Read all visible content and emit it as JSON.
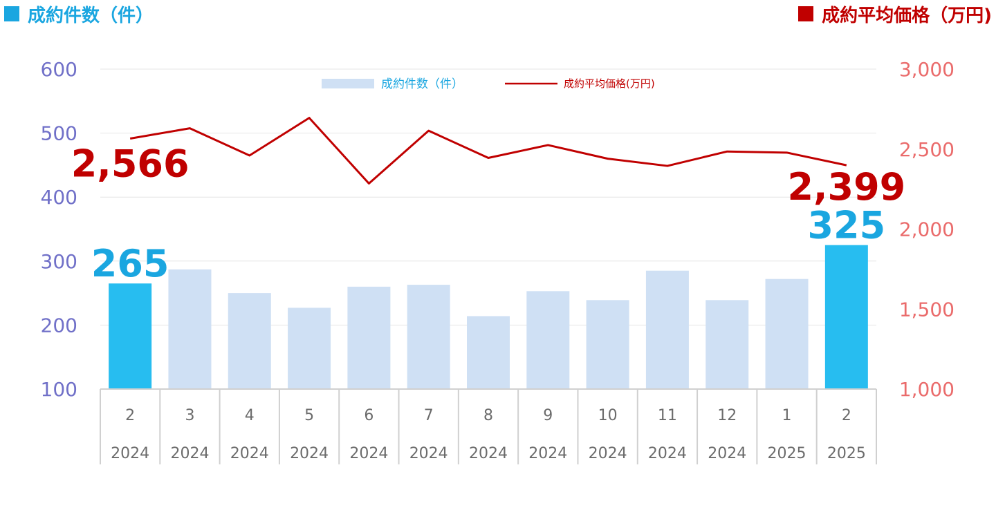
{
  "header": {
    "left_title": "成約件数（件）",
    "right_title": "成約平均価格（万円)"
  },
  "colors": {
    "bar_default": "#cfe0f4",
    "bar_highlight": "#27bdf0",
    "line": "#c00000",
    "left_axis_text": "#7070c8",
    "right_axis_text": "#ea6b6b",
    "grid": "#e4e4e4",
    "category_border": "#d0d0d0"
  },
  "chart_data": {
    "type": "bar",
    "categories": [
      {
        "month": "2",
        "year": "2024"
      },
      {
        "month": "3",
        "year": "2024"
      },
      {
        "month": "4",
        "year": "2024"
      },
      {
        "month": "5",
        "year": "2024"
      },
      {
        "month": "6",
        "year": "2024"
      },
      {
        "month": "7",
        "year": "2024"
      },
      {
        "month": "8",
        "year": "2024"
      },
      {
        "month": "9",
        "year": "2024"
      },
      {
        "month": "10",
        "year": "2024"
      },
      {
        "month": "11",
        "year": "2024"
      },
      {
        "month": "12",
        "year": "2024"
      },
      {
        "month": "1",
        "year": "2025"
      },
      {
        "month": "2",
        "year": "2025"
      }
    ],
    "series": [
      {
        "name": "成約件数（件）",
        "type": "bar",
        "axis": "left",
        "values": [
          265,
          287,
          250,
          227,
          260,
          263,
          214,
          253,
          239,
          285,
          239,
          272,
          325
        ],
        "highlight": [
          0,
          12
        ],
        "data_labels": [
          {
            "index": 0,
            "text": "265"
          },
          {
            "index": 12,
            "text": "325"
          }
        ]
      },
      {
        "name": "成約平均価格(万円)",
        "type": "line",
        "axis": "right",
        "values": [
          2566,
          2630,
          2460,
          2695,
          2285,
          2615,
          2445,
          2525,
          2440,
          2395,
          2485,
          2478,
          2399
        ],
        "data_labels": [
          {
            "index": 0,
            "text": "2,566"
          },
          {
            "index": 12,
            "text": "2,399"
          }
        ]
      }
    ],
    "y_left": {
      "min": 100,
      "max": 600,
      "ticks": [
        "100",
        "200",
        "300",
        "400",
        "500",
        "600"
      ]
    },
    "y_right": {
      "min": 1000,
      "max": 3000,
      "ticks": [
        "1,000",
        "1,500",
        "2,000",
        "2,500",
        "3,000"
      ]
    },
    "grid": true,
    "legend_position": "top-center"
  }
}
